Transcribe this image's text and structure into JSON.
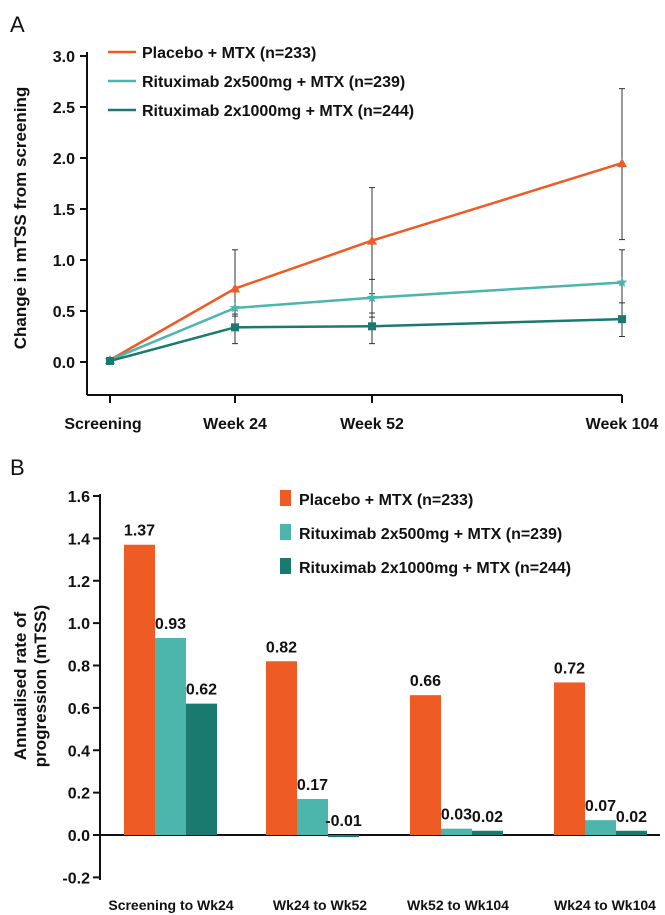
{
  "colors": {
    "placebo": "#ef5b25",
    "rtx500": "#4db6ac",
    "rtx1000": "#1a7a70",
    "axis": "#111111",
    "errorbar": "#333333"
  },
  "chart_data": [
    {
      "panel": "A",
      "type": "line",
      "ylabel": "Change in mTSS from screening",
      "xlabel": "",
      "categories": [
        "Screening",
        "Week 24",
        "Week 52",
        "Week 104"
      ],
      "x": [
        0,
        24,
        52,
        104
      ],
      "ylim": [
        -0.1,
        3.0
      ],
      "yticks": [
        "3.0",
        "2.5",
        "2.0",
        "1.5",
        "1.0",
        "0.5",
        "0.0"
      ],
      "yticks_values": [
        3.0,
        2.5,
        2.0,
        1.5,
        1.0,
        0.5,
        0.0
      ],
      "legend_position": "top-left",
      "grid": false,
      "series": [
        {
          "name": "Placebo + MTX (n=233)",
          "color": "#ef5b25",
          "marker": "triangle",
          "values": [
            0.02,
            0.72,
            1.19,
            1.95
          ],
          "err_low": [
            0.02,
            0.45,
            0.67,
            1.2
          ],
          "err_high": [
            0.02,
            1.1,
            1.71,
            2.68
          ]
        },
        {
          "name": "Rituximab 2x500mg + MTX (n=239)",
          "color": "#4db6ac",
          "marker": "star",
          "values": [
            0.02,
            0.53,
            0.63,
            0.78
          ],
          "err_low": [
            0.02,
            0.37,
            0.44,
            0.45
          ],
          "err_high": [
            0.02,
            0.69,
            0.81,
            1.1
          ]
        },
        {
          "name": "Rituximab 2x1000mg + MTX (n=244)",
          "color": "#1a7a70",
          "marker": "square",
          "values": [
            0.01,
            0.34,
            0.35,
            0.42
          ],
          "err_low": [
            0.01,
            0.18,
            0.18,
            0.25
          ],
          "err_high": [
            0.01,
            0.47,
            0.48,
            0.58
          ]
        }
      ]
    },
    {
      "panel": "B",
      "type": "bar",
      "ylabel_lines": [
        "Annualised rate of",
        "progression (mTSS)"
      ],
      "xlabel": "",
      "categories": [
        "Screening to Wk24",
        "Wk24 to Wk52",
        "Wk52 to Wk104",
        "Wk24 to Wk104"
      ],
      "ylim": [
        -0.2,
        1.6
      ],
      "yticks": [
        "1.6",
        "1.4",
        "1.2",
        "1.0",
        "0.8",
        "0.6",
        "0.4",
        "0.2",
        "0.0",
        "-0.2"
      ],
      "yticks_values": [
        1.6,
        1.4,
        1.2,
        1.0,
        0.8,
        0.6,
        0.4,
        0.2,
        0.0,
        -0.2
      ],
      "legend_position": "top-right",
      "grid": false,
      "series": [
        {
          "name": "Placebo + MTX (n=233)",
          "color": "#ef5b25",
          "values": [
            1.37,
            0.82,
            0.66,
            0.72
          ],
          "labels": [
            "1.37",
            "0.82",
            "0.66",
            "0.72"
          ]
        },
        {
          "name": "Rituximab 2x500mg + MTX (n=239)",
          "color": "#4db6ac",
          "values": [
            0.93,
            0.17,
            0.03,
            0.07
          ],
          "labels": [
            "0.93",
            "0.17",
            "0.03",
            "0.07"
          ]
        },
        {
          "name": "Rituximab 2x1000mg + MTX (n=244)",
          "color": "#1a7a70",
          "values": [
            0.62,
            -0.01,
            0.02,
            0.02
          ],
          "labels": [
            "0.62",
            "-0.01",
            "0.02",
            "0.02"
          ]
        }
      ]
    }
  ]
}
